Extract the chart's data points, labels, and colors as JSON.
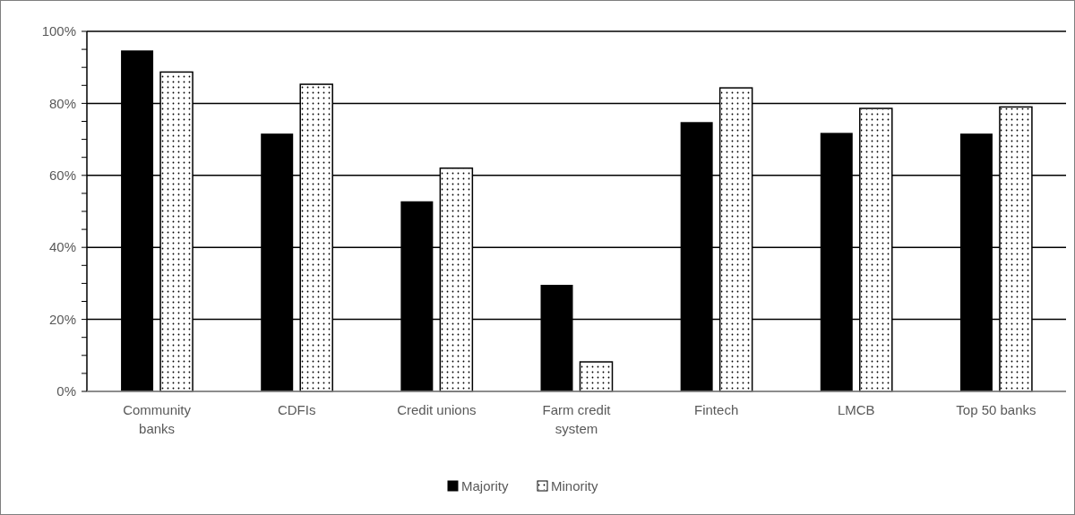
{
  "chart_data": {
    "type": "bar",
    "categories": [
      "Community banks",
      "CDFIs",
      "Credit unions",
      "Farm credit system",
      "Fintech",
      "LMCB",
      "Top 50 banks"
    ],
    "series": [
      {
        "name": "Majority",
        "color": "#000000",
        "values": [
          94.7,
          71.6,
          52.8,
          29.6,
          74.8,
          71.8,
          71.6
        ]
      },
      {
        "name": "Minority",
        "color": "#ffffff",
        "values": [
          88.7,
          85.3,
          62.0,
          8.2,
          84.3,
          78.6,
          79.0
        ]
      }
    ],
    "ylim": [
      0,
      100
    ],
    "yticks": [
      {
        "value": 0,
        "label": "0%"
      },
      {
        "value": 5,
        "label": null
      },
      {
        "value": 10,
        "label": null
      },
      {
        "value": 15,
        "label": null
      },
      {
        "value": 20,
        "label": "20%"
      },
      {
        "value": 25,
        "label": null
      },
      {
        "value": 30,
        "label": null
      },
      {
        "value": 35,
        "label": null
      },
      {
        "value": 40,
        "label": "40%"
      },
      {
        "value": 45,
        "label": null
      },
      {
        "value": 50,
        "label": null
      },
      {
        "value": 55,
        "label": null
      },
      {
        "value": 60,
        "label": "60%"
      },
      {
        "value": 65,
        "label": null
      },
      {
        "value": 70,
        "label": null
      },
      {
        "value": 75,
        "label": null
      },
      {
        "value": 80,
        "label": "80%"
      },
      {
        "value": 85,
        "label": null
      },
      {
        "value": 90,
        "label": null
      },
      {
        "value": 95,
        "label": null
      },
      {
        "value": 100,
        "label": "100%"
      }
    ],
    "grid": "y",
    "legend": "bottom"
  }
}
